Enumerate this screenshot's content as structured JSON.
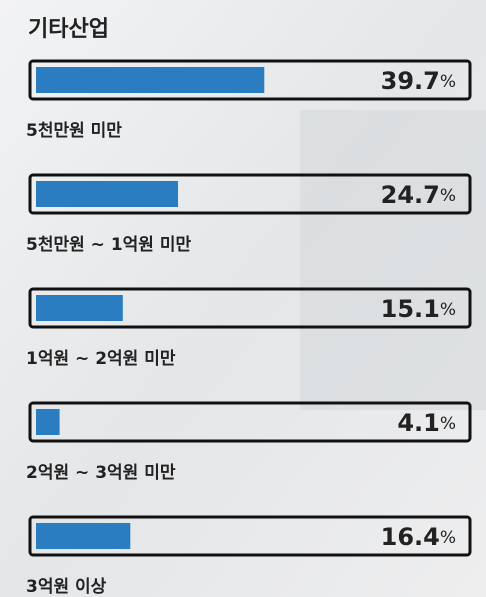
{
  "chart_data": {
    "type": "bar",
    "orientation": "horizontal",
    "title": "기타산업",
    "categories": [
      "5천만원 미만",
      "5천만원 ~ 1억원 미만",
      "1억원 ~ 2억원 미만",
      "2억원 ~ 3억원 미만",
      "3억원 이상"
    ],
    "values": [
      39.7,
      24.7,
      15.1,
      4.1,
      16.4
    ],
    "unit": "%",
    "color": "#2a7dc0",
    "xlim": [
      0,
      72
    ]
  }
}
